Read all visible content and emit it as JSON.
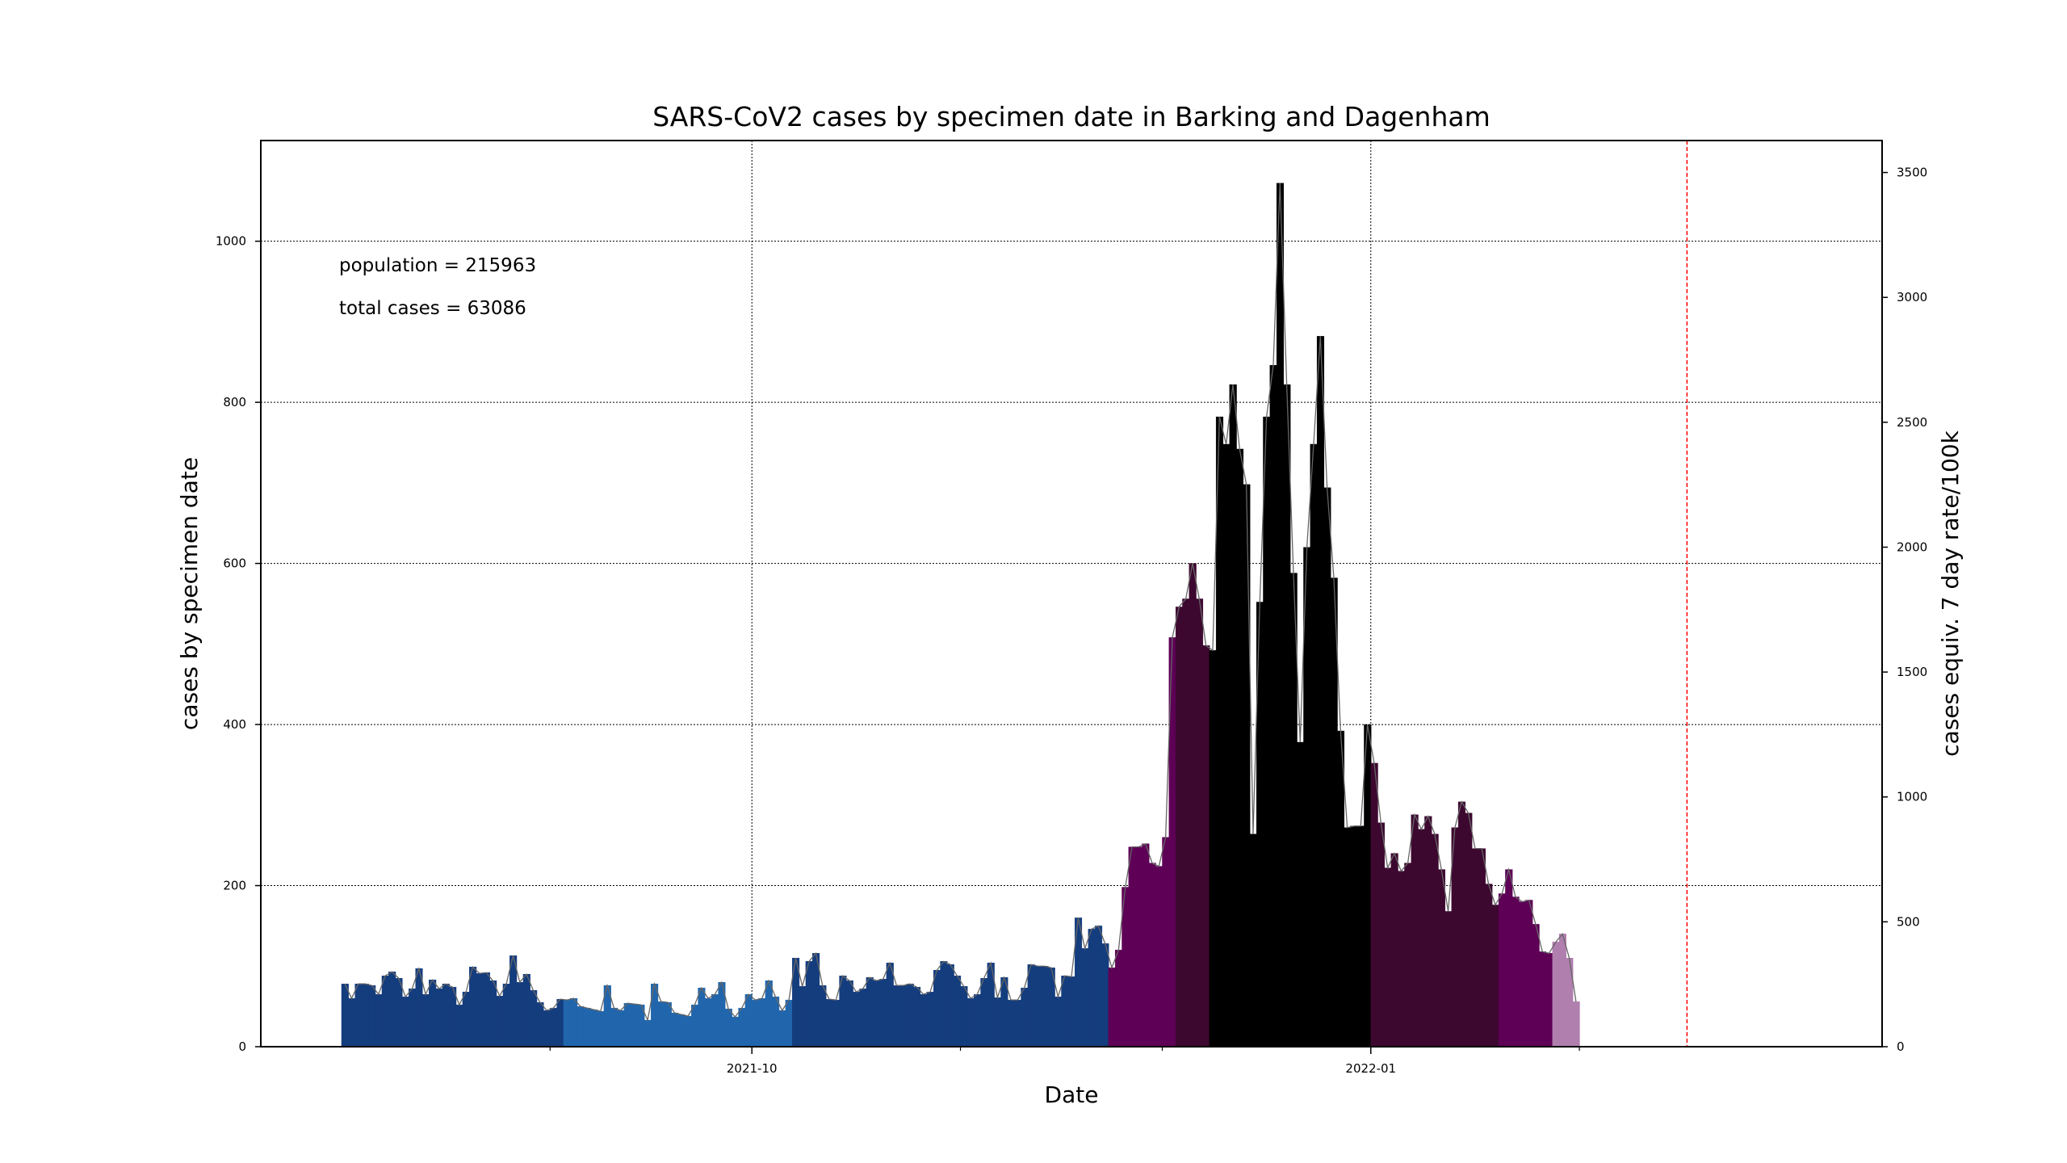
{
  "chart_data": {
    "type": "bar",
    "title": "SARS-CoV2 cases by specimen date in Barking and Dagenham",
    "xlabel": "Date",
    "ylabel": "cases by specimen date",
    "y2label": "cases equiv. 7 day rate/100k",
    "annotations": [
      "population = 215963",
      "total cases = 63086"
    ],
    "x_start": "2021-08-01",
    "x_end": "2022-03-01",
    "xlim": [
      "2021-07-20",
      "2022-03-18"
    ],
    "ylim": [
      0,
      1125
    ],
    "y2lim": [
      0,
      3628
    ],
    "grid": true,
    "x_ticks": [
      {
        "date": "2021-10-01",
        "label": "2021-10"
      },
      {
        "date": "2022-01-01",
        "label": "2022-01"
      }
    ],
    "x_minor_ticks": [
      "2021-09-01",
      "2021-11-01",
      "2021-12-01",
      "2022-02-01"
    ],
    "y_ticks": [
      0,
      200,
      400,
      600,
      800,
      1000
    ],
    "y2_ticks": [
      0,
      500,
      1000,
      1500,
      2000,
      2500,
      3000,
      3500
    ],
    "vline_date": "2022-02-17",
    "values": [
      78,
      60,
      78,
      78,
      76,
      65,
      88,
      93,
      85,
      62,
      72,
      97,
      65,
      83,
      72,
      78,
      74,
      52,
      68,
      99,
      91,
      92,
      82,
      63,
      78,
      113,
      80,
      90,
      70,
      55,
      45,
      48,
      59,
      58,
      60,
      50,
      48,
      46,
      44,
      76,
      48,
      45,
      54,
      53,
      52,
      33,
      78,
      56,
      55,
      42,
      40,
      38,
      52,
      73,
      60,
      65,
      80,
      47,
      37,
      48,
      65,
      58,
      60,
      82,
      62,
      45,
      58,
      110,
      75,
      106,
      116,
      76,
      59,
      58,
      88,
      82,
      68,
      72,
      86,
      82,
      84,
      104,
      76,
      76,
      78,
      74,
      65,
      68,
      95,
      106,
      102,
      88,
      75,
      60,
      65,
      85,
      104,
      61,
      86,
      58,
      58,
      73,
      102,
      100,
      100,
      98,
      62,
      88,
      87,
      160,
      122,
      146,
      150,
      128,
      98,
      120,
      198,
      248,
      248,
      252,
      228,
      224,
      260,
      508,
      546,
      556,
      600,
      556,
      498,
      492,
      782,
      748,
      822,
      742,
      698,
      264,
      552,
      782,
      846,
      1072,
      822,
      588,
      378,
      620,
      748,
      882,
      694,
      582,
      392,
      272,
      274,
      274,
      400,
      352,
      278,
      222,
      240,
      218,
      228,
      288,
      270,
      286,
      264,
      220,
      168,
      272,
      304,
      290,
      246,
      246,
      202,
      176,
      190,
      220,
      186,
      180,
      182,
      152,
      118,
      116,
      130,
      140,
      110,
      56
    ],
    "series": [
      {
        "name": "",
        "range": [
          0,
          33
        ],
        "color": "#143d7e"
      },
      {
        "name": "",
        "range": [
          33,
          67
        ],
        "color": "#2166ac"
      },
      {
        "name": "",
        "range": [
          67,
          114
        ],
        "color": "#143d7e"
      },
      {
        "name": "",
        "range": [
          114,
          124
        ],
        "color": "#5e0056"
      },
      {
        "name": "",
        "range": [
          124,
          129
        ],
        "color": "#3d0830"
      },
      {
        "name": "",
        "range": [
          129,
          153
        ],
        "color": "#000000"
      },
      {
        "name": "",
        "range": [
          153,
          172
        ],
        "color": "#3d0830"
      },
      {
        "name": "",
        "range": [
          172,
          180
        ],
        "color": "#5e0056"
      },
      {
        "name": "",
        "range": [
          180,
          184
        ],
        "color": "#b07fae"
      },
      {
        "name": "",
        "range": [
          184,
          185
        ],
        "color": "#8aa0c0"
      }
    ],
    "line_color": "#666666",
    "vline_color": "#ff0000"
  }
}
